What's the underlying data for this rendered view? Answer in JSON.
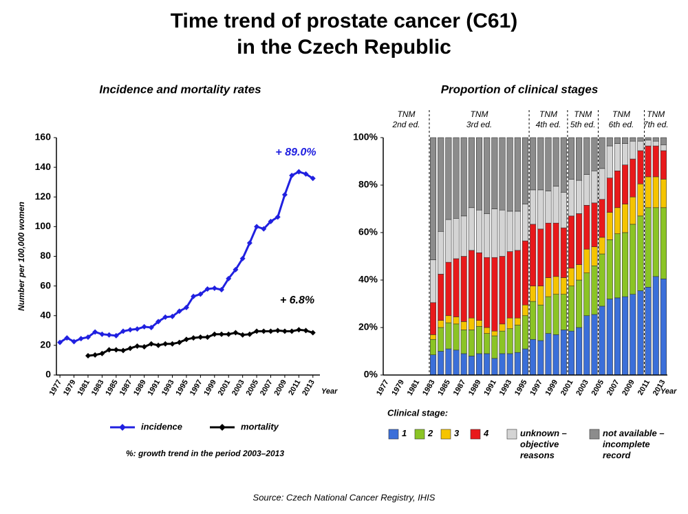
{
  "title": [
    "Time trend of prostate cancer (C61)",
    "in the Czech Republic"
  ],
  "source": "Source: Czech National Cancer Registry, IHIS",
  "chart_data": [
    {
      "type": "line",
      "title": "Incidence and mortality rates",
      "y_label": "Number per 100,000 women",
      "x_label": "Year",
      "x": [
        1977,
        1978,
        1979,
        1980,
        1981,
        1982,
        1983,
        1984,
        1985,
        1986,
        1987,
        1988,
        1989,
        1990,
        1991,
        1992,
        1993,
        1994,
        1995,
        1996,
        1997,
        1998,
        1999,
        2000,
        2001,
        2002,
        2003,
        2004,
        2005,
        2006,
        2007,
        2008,
        2009,
        2010,
        2011,
        2012,
        2013
      ],
      "xlim": [
        1976.5,
        2014
      ],
      "xticks": [
        1977,
        1979,
        1981,
        1983,
        1985,
        1987,
        1989,
        1991,
        1993,
        1995,
        1997,
        1999,
        2001,
        2003,
        2005,
        2007,
        2009,
        2011,
        2013
      ],
      "ylim": [
        0,
        160
      ],
      "yticks": [
        0,
        20,
        40,
        60,
        80,
        100,
        120,
        140,
        160
      ],
      "series": [
        {
          "name": "incidence",
          "color": "#2020e0",
          "values": [
            22,
            25,
            22.5,
            24.5,
            25.5,
            29,
            27.5,
            27,
            26.5,
            29.5,
            30.5,
            31,
            32.5,
            32,
            36,
            39,
            39.5,
            43,
            45.5,
            53,
            54.5,
            58,
            58.5,
            57.5,
            65,
            71,
            78.5,
            89,
            100,
            98.5,
            103.5,
            106.5,
            121.5,
            134.5,
            137,
            135.5,
            132.5
          ]
        },
        {
          "name": "mortality",
          "color": "#000000",
          "values": [
            null,
            null,
            null,
            null,
            13,
            13.5,
            14.5,
            17,
            17,
            16.5,
            18,
            19.5,
            19,
            21,
            20,
            21,
            21,
            22,
            24,
            25,
            25.5,
            25.5,
            27.5,
            27.5,
            27.5,
            28.5,
            27,
            27.5,
            29.5,
            29.5,
            29.5,
            30,
            29.5,
            29.5,
            30.5,
            30,
            28.5
          ]
        }
      ],
      "annotations": [
        {
          "text": "+ 89.0%",
          "color": "#2020e0"
        },
        {
          "text": "+ 6.8%",
          "color": "#000000"
        }
      ],
      "note": "%: growth trend in the period 2003–2013"
    },
    {
      "type": "bar",
      "stacked": true,
      "title": "Proportion of clinical stages",
      "x_label": "Year",
      "categories": [
        "1977",
        null,
        "1979",
        null,
        "1981",
        null,
        "1983",
        null,
        "1985",
        null,
        "1987",
        null,
        "1989",
        null,
        "1991",
        null,
        "1993",
        null,
        "1995",
        null,
        "1997",
        null,
        "1999",
        null,
        "2001",
        null,
        "2003",
        null,
        "2005",
        null,
        "2007",
        null,
        "2009",
        null,
        "2011",
        null,
        "2013"
      ],
      "ylim": [
        0,
        100
      ],
      "yticks": [
        {
          "value": 0,
          "label": "0%"
        },
        {
          "value": 20,
          "label": "20%"
        },
        {
          "value": 40,
          "label": "40%"
        },
        {
          "value": 60,
          "label": "60%"
        },
        {
          "value": 80,
          "label": "80%"
        },
        {
          "value": 100,
          "label": "100%"
        }
      ],
      "legend_title": "Clinical stage:",
      "series": [
        {
          "name": "1",
          "color": "#3b6fd9",
          "values": [
            null,
            null,
            null,
            null,
            null,
            null,
            8.5,
            10,
            11,
            10.5,
            9,
            8,
            9,
            9,
            7,
            9,
            9,
            9.5,
            11,
            15,
            14.5,
            17.5,
            17,
            19,
            18.5,
            20,
            25,
            25.5,
            29,
            32,
            32.5,
            33,
            34,
            35.5,
            37,
            41.5,
            40.5
          ]
        },
        {
          "name": "2",
          "color": "#8bc425",
          "values": [
            null,
            null,
            null,
            null,
            null,
            null,
            6.5,
            10,
            11,
            11,
            10,
            11,
            11.5,
            8.5,
            9.5,
            9.5,
            10.5,
            11.5,
            14,
            16,
            15,
            15.5,
            17,
            15,
            19,
            20,
            18,
            20.5,
            22,
            25,
            27,
            27,
            29.5,
            31.5,
            33.5,
            29,
            30
          ]
        },
        {
          "name": "3",
          "color": "#f5c400",
          "values": [
            null,
            null,
            null,
            null,
            null,
            null,
            2,
            3,
            3,
            3,
            3.5,
            5,
            2.5,
            2.5,
            2,
            3,
            4.5,
            3,
            4.5,
            6.5,
            8,
            8,
            7.5,
            7,
            7.5,
            6.5,
            10,
            8,
            7,
            11.5,
            11,
            12,
            11.5,
            13.5,
            13,
            13,
            12
          ]
        },
        {
          "name": "4",
          "color": "#e8191b",
          "values": [
            null,
            null,
            null,
            null,
            null,
            null,
            13.5,
            19.5,
            22.5,
            24.5,
            27.5,
            28.5,
            28.5,
            29.5,
            31,
            28.5,
            28,
            28.5,
            27,
            26,
            24,
            23,
            22.5,
            21,
            22,
            21.5,
            18.5,
            18.5,
            16,
            14.5,
            15.5,
            16.5,
            16,
            14,
            13,
            13,
            12
          ]
        },
        {
          "name": "unknown – objective reasons",
          "color": "#d4d4d4",
          "values": [
            null,
            null,
            null,
            null,
            null,
            null,
            18,
            18,
            18,
            17,
            17,
            18,
            18,
            18.5,
            20.5,
            19.5,
            17,
            16.5,
            15.5,
            14.5,
            16.5,
            13.5,
            15.5,
            15,
            15.5,
            14,
            13,
            13.5,
            13,
            13.5,
            11.5,
            9,
            7.5,
            4,
            2.5,
            2,
            2.5
          ]
        },
        {
          "name": "not available – incomplete record",
          "color": "#8c8c8c",
          "values": [
            null,
            null,
            null,
            null,
            null,
            null,
            51.5,
            39.5,
            34.5,
            34,
            33,
            29.5,
            30.5,
            32,
            30,
            30.5,
            31,
            31,
            28,
            22,
            22,
            22.5,
            20.5,
            23,
            17.5,
            18,
            15.5,
            14,
            13,
            3.5,
            2.5,
            2.5,
            1.5,
            1.5,
            1,
            1.5,
            3
          ]
        }
      ],
      "tnm_editions": [
        {
          "lines": [
            "TNM",
            "2nd ed."
          ]
        },
        {
          "lines": [
            "TNM",
            "3rd ed."
          ]
        },
        {
          "lines": [
            "TNM",
            "4th ed."
          ]
        },
        {
          "lines": [
            "TNM",
            "5th ed."
          ]
        },
        {
          "lines": [
            "TNM",
            "6th ed."
          ]
        },
        {
          "lines": [
            "TNM",
            "7th ed."
          ]
        }
      ],
      "edition_breaks": [
        1982.5,
        1995.5,
        2000.5,
        2004.5,
        2010.5
      ]
    }
  ]
}
